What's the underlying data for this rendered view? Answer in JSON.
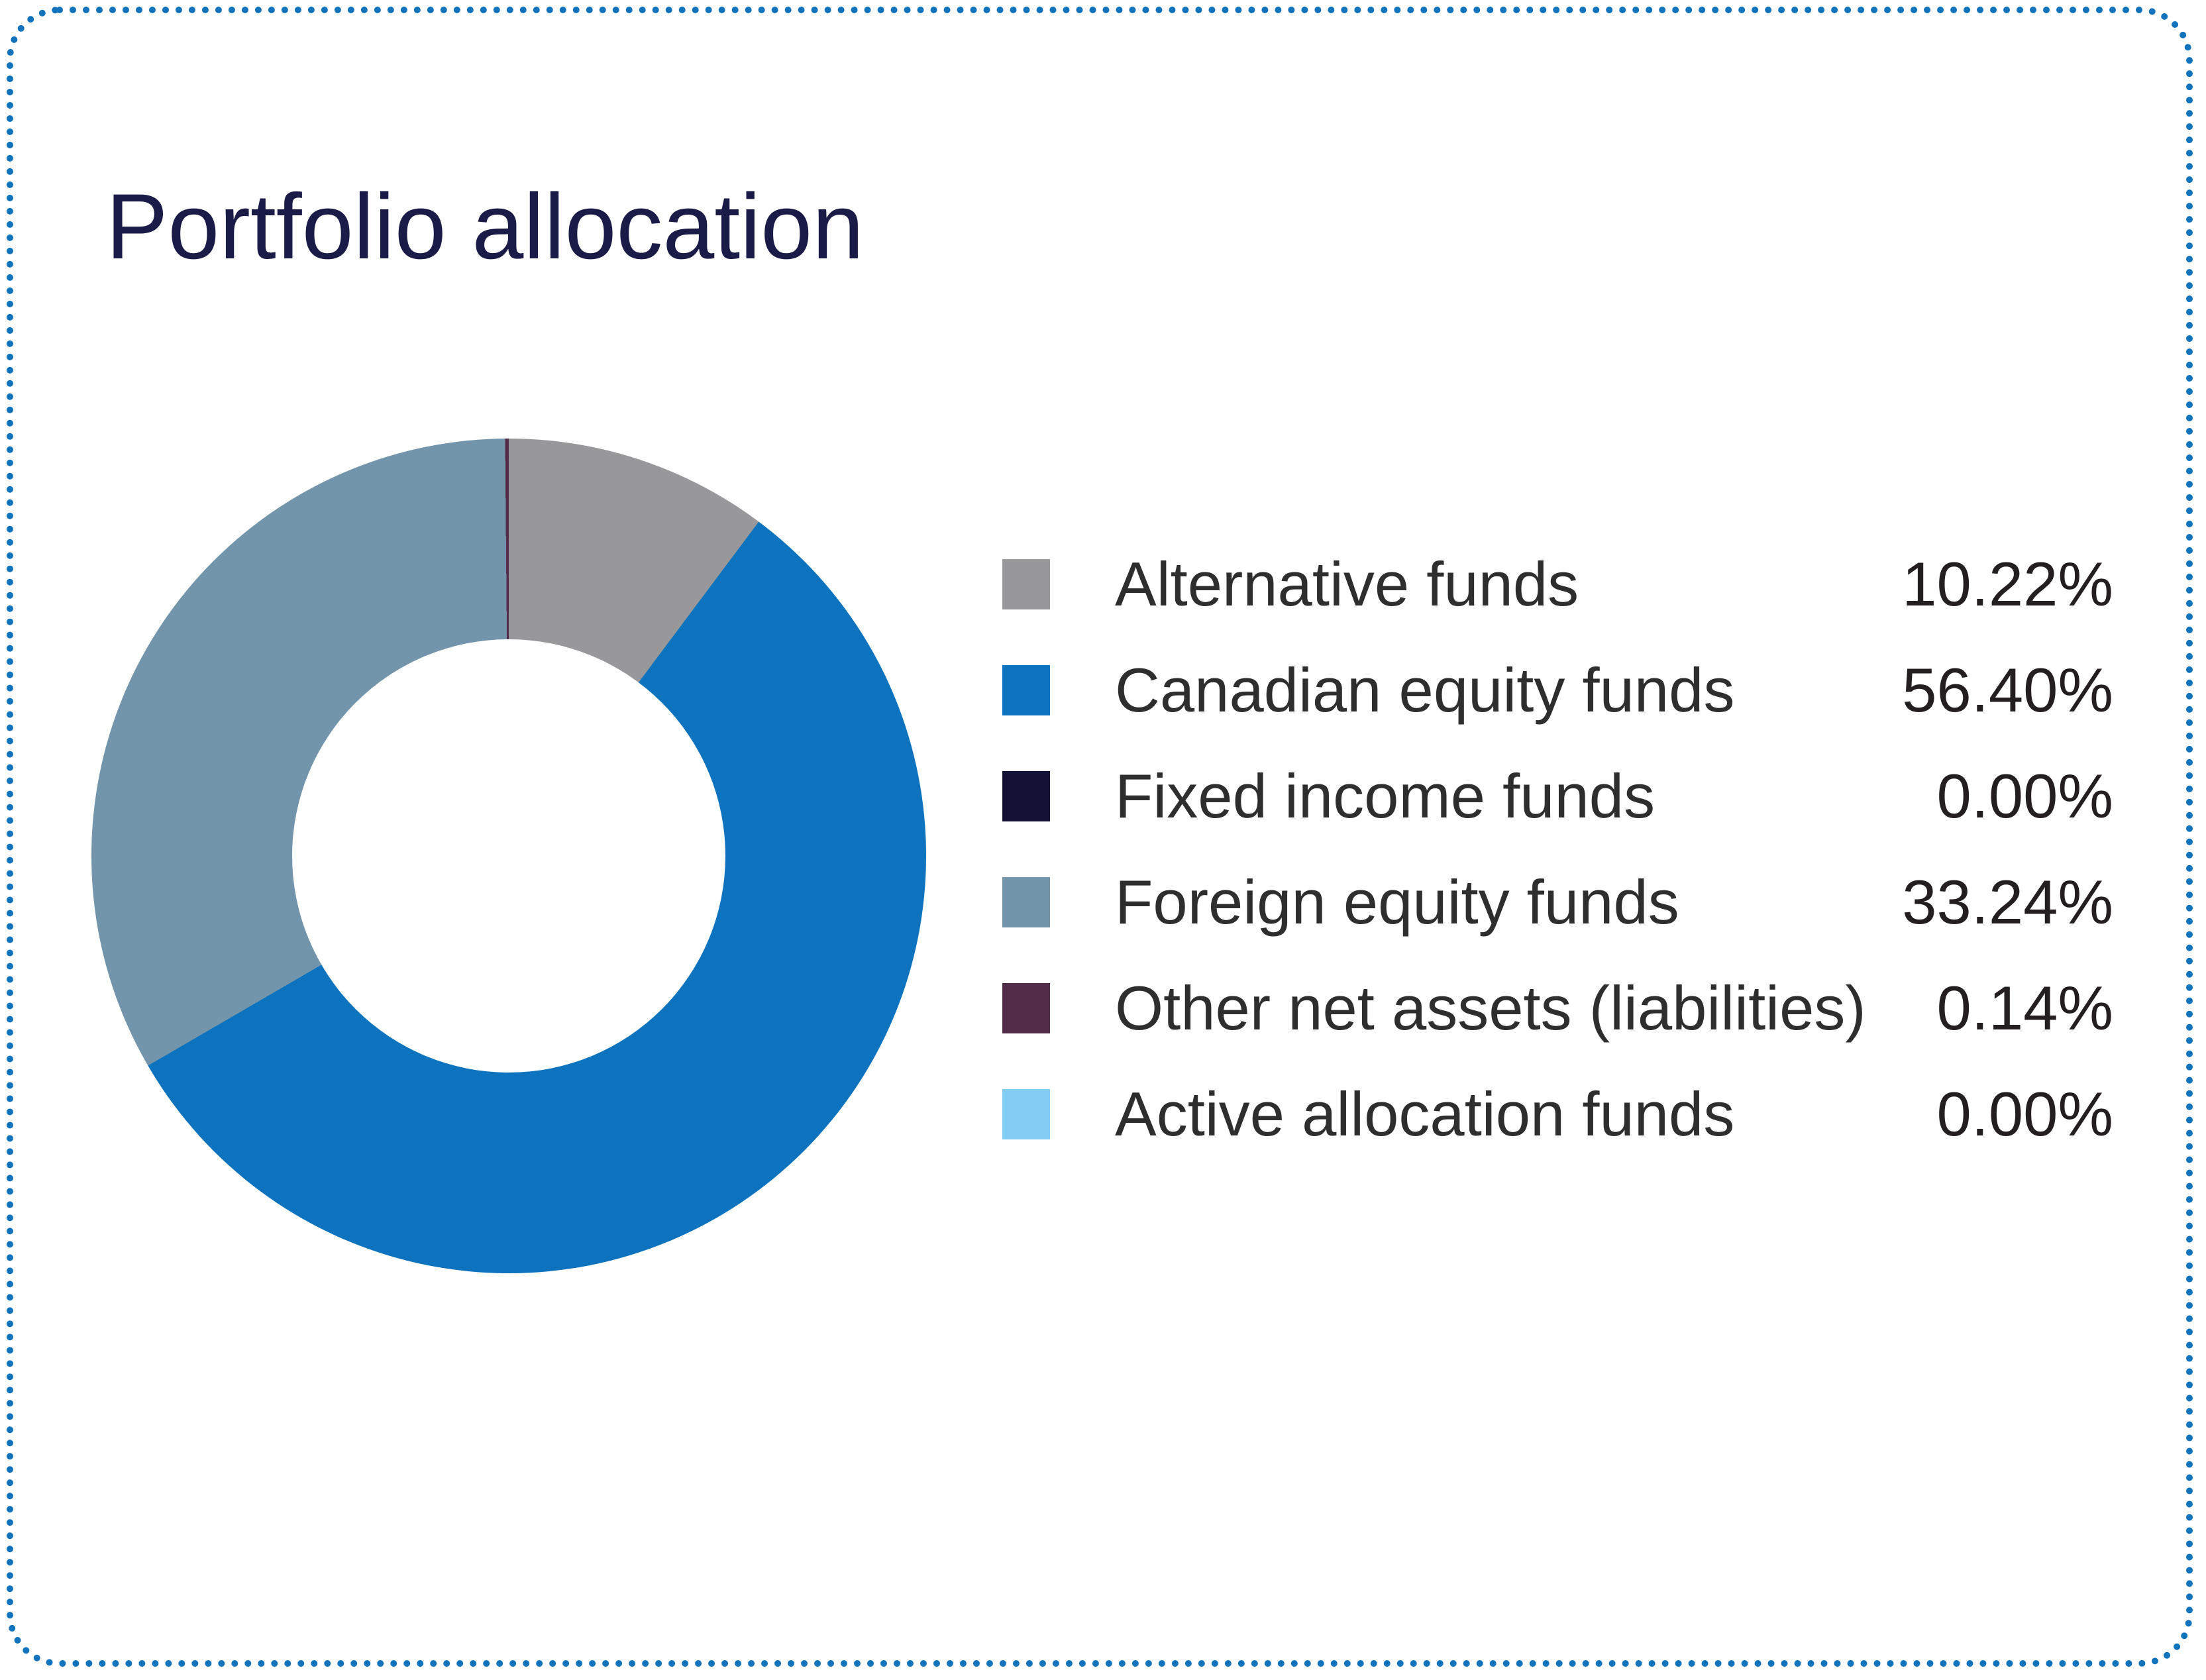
{
  "card": {
    "background": "#ffffff",
    "border_color": "#1273bd",
    "border_style": "dotted"
  },
  "header": {
    "title": "Portfolio allocation",
    "title_color": "#1b1b47"
  },
  "chart_data": {
    "type": "pie",
    "subtype": "donut",
    "title": "Portfolio allocation",
    "categories": [
      "Alternative funds",
      "Canadian equity funds",
      "Fixed income funds",
      "Foreign equity funds",
      "Other net assets (liabilities)",
      "Active allocation funds"
    ],
    "values": [
      10.22,
      56.4,
      0.0,
      33.24,
      0.14,
      0.0
    ],
    "value_labels": [
      "10.22%",
      "56.40%",
      "0.00%",
      "33.24%",
      "0.14%",
      "0.00%"
    ],
    "colors": [
      "#98989a",
      "#0d73be",
      "#131136",
      "#7295ab",
      "#532c4a",
      "#85ccf2"
    ],
    "start_angle_deg": 0,
    "direction": "clockwise",
    "donut_hole_ratio": 0.52,
    "legend_position": "right",
    "grid": false
  }
}
